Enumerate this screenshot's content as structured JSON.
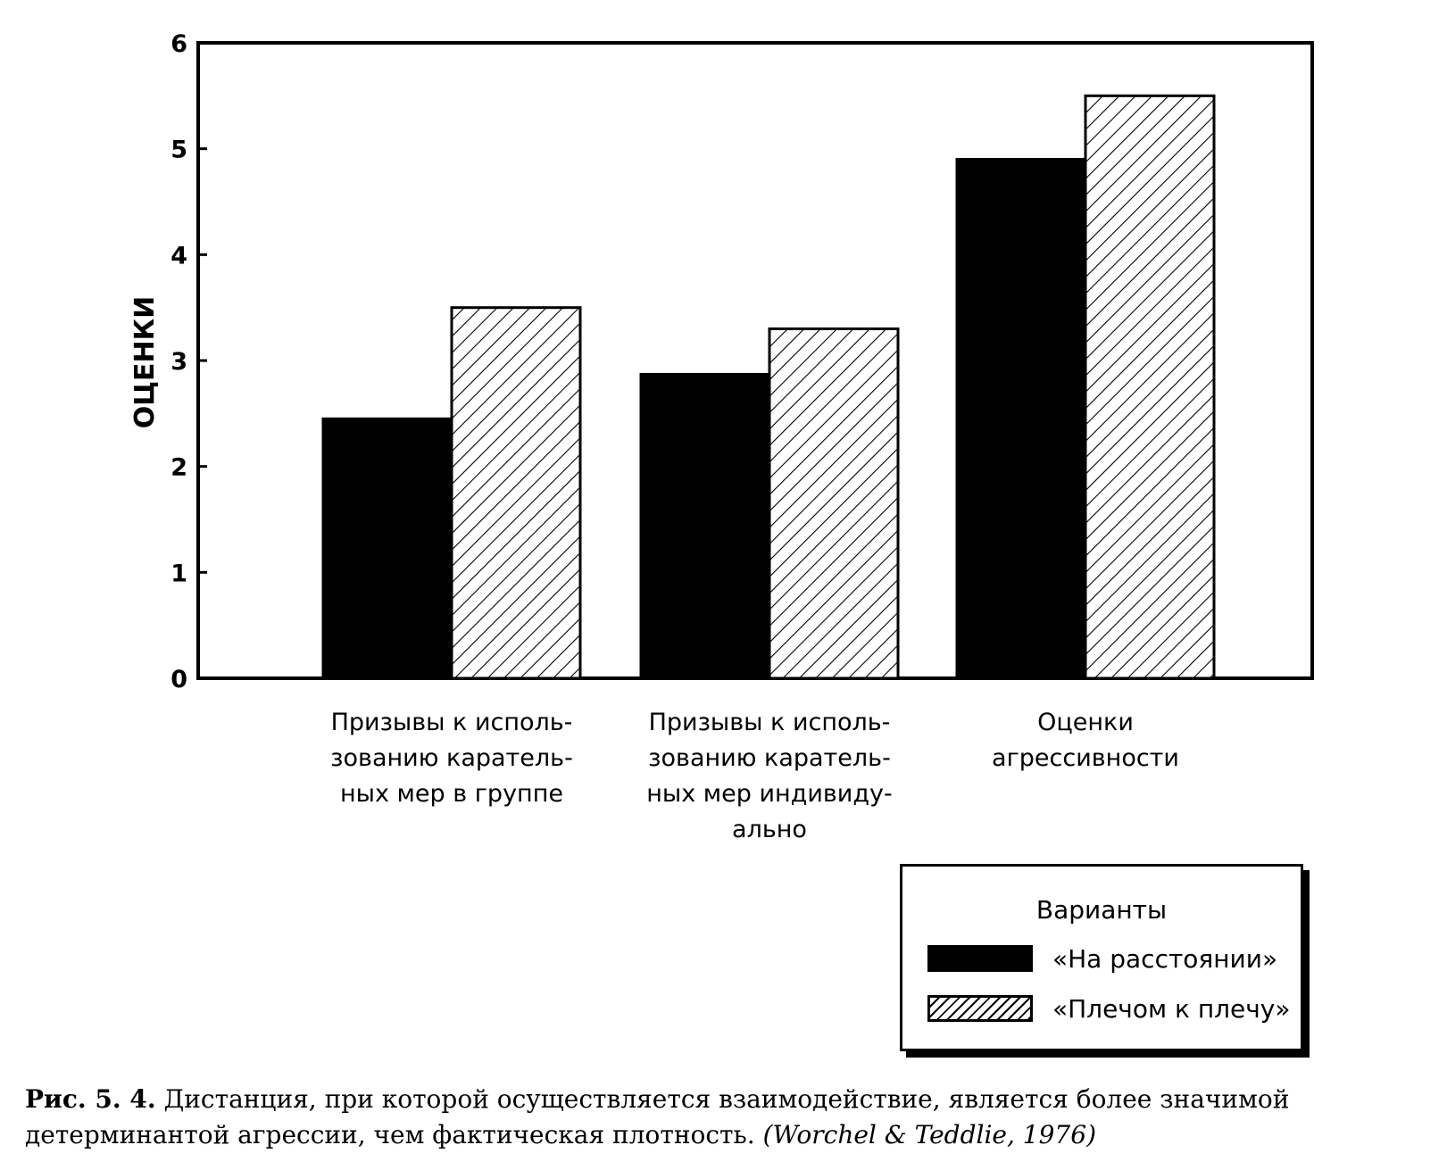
{
  "chart_data": {
    "type": "bar",
    "categories": [
      [
        "Призывы к исполь-",
        "зованию каратель-",
        "ных мер в группе"
      ],
      [
        "Призывы к исполь-",
        "зованию каратель-",
        "ных мер индивиду-",
        "ально"
      ],
      [
        "Оценки",
        "агрессивности"
      ]
    ],
    "series": [
      {
        "name": "«На расстоянии»",
        "values": [
          2.45,
          2.87,
          4.9
        ],
        "fill": "solid",
        "color": "#000000"
      },
      {
        "name": "«Плечом к плечу»",
        "values": [
          3.5,
          3.3,
          5.5
        ],
        "fill": "hatch",
        "color": "#000000"
      }
    ],
    "ylabel": "ОЦЕНКИ",
    "ylim": [
      0,
      6
    ],
    "yticks": [
      "0",
      "1",
      "2",
      "3",
      "4",
      "5",
      "6"
    ],
    "grid": false,
    "legend": {
      "title": "Варианты",
      "placement": "bottom-right"
    }
  },
  "caption": {
    "lead": "Рис. 5. 4.",
    "text": " Дистанция, при которой осуществляется взаимодействие, является более значимой детерминантой агрессии, чем фактическая плотность. ",
    "source": "(Worchel & Teddlie, 1976)"
  }
}
